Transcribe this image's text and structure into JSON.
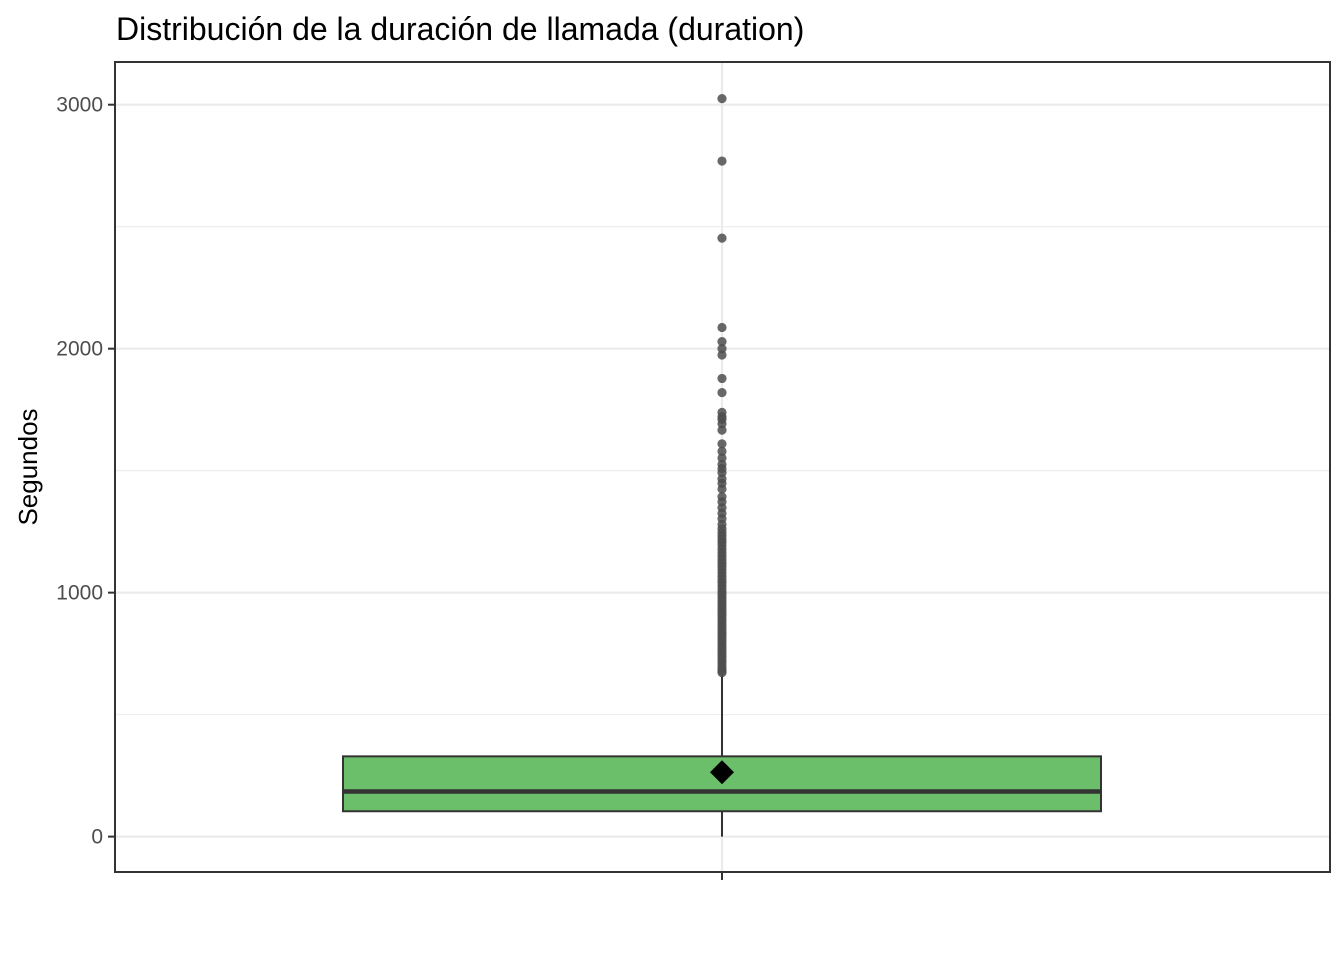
{
  "chart_data": {
    "type": "boxplot",
    "title": "Distribución de la duración de llamada (duration)",
    "xlabel": "",
    "ylabel": "Segundos",
    "ylim": [
      -145,
      3175
    ],
    "y_ticks": [
      0,
      1000,
      2000,
      3000
    ],
    "y_minor_gridlines": [
      500,
      1500,
      2500
    ],
    "grid": true,
    "legend": "none",
    "box": {
      "q1": 104,
      "median": 185,
      "q3": 329,
      "whisker_low": 0,
      "whisker_high": 668,
      "mean": 264,
      "outliers": [
        3025,
        2769,
        2453,
        2087,
        2029,
        2000,
        1974,
        1878,
        1820,
        1739,
        1721,
        1710,
        1692,
        1666,
        1610,
        1579,
        1552,
        1526,
        1509,
        1492,
        1467,
        1448,
        1425,
        1393,
        1372,
        1348,
        1325,
        1303,
        1280,
        1262,
        1247,
        1233,
        1220,
        1207,
        1193,
        1178,
        1163,
        1149,
        1135,
        1121,
        1108,
        1095,
        1081,
        1067,
        1054,
        1041,
        1028,
        1015,
        1002,
        990,
        978,
        966,
        954,
        942,
        930,
        918,
        906,
        894,
        882,
        870,
        858,
        846,
        834,
        822,
        810,
        798,
        786,
        774,
        762,
        750,
        738,
        726,
        714,
        702,
        690,
        680,
        672
      ]
    },
    "colors": {
      "box_fill": "#6bbf6b",
      "box_stroke": "#333333",
      "median_line": "#333333",
      "outlier": "#4d4d4d",
      "mean_marker": "#000000",
      "grid": "#ebebeb",
      "panel_border": "#333333"
    }
  }
}
